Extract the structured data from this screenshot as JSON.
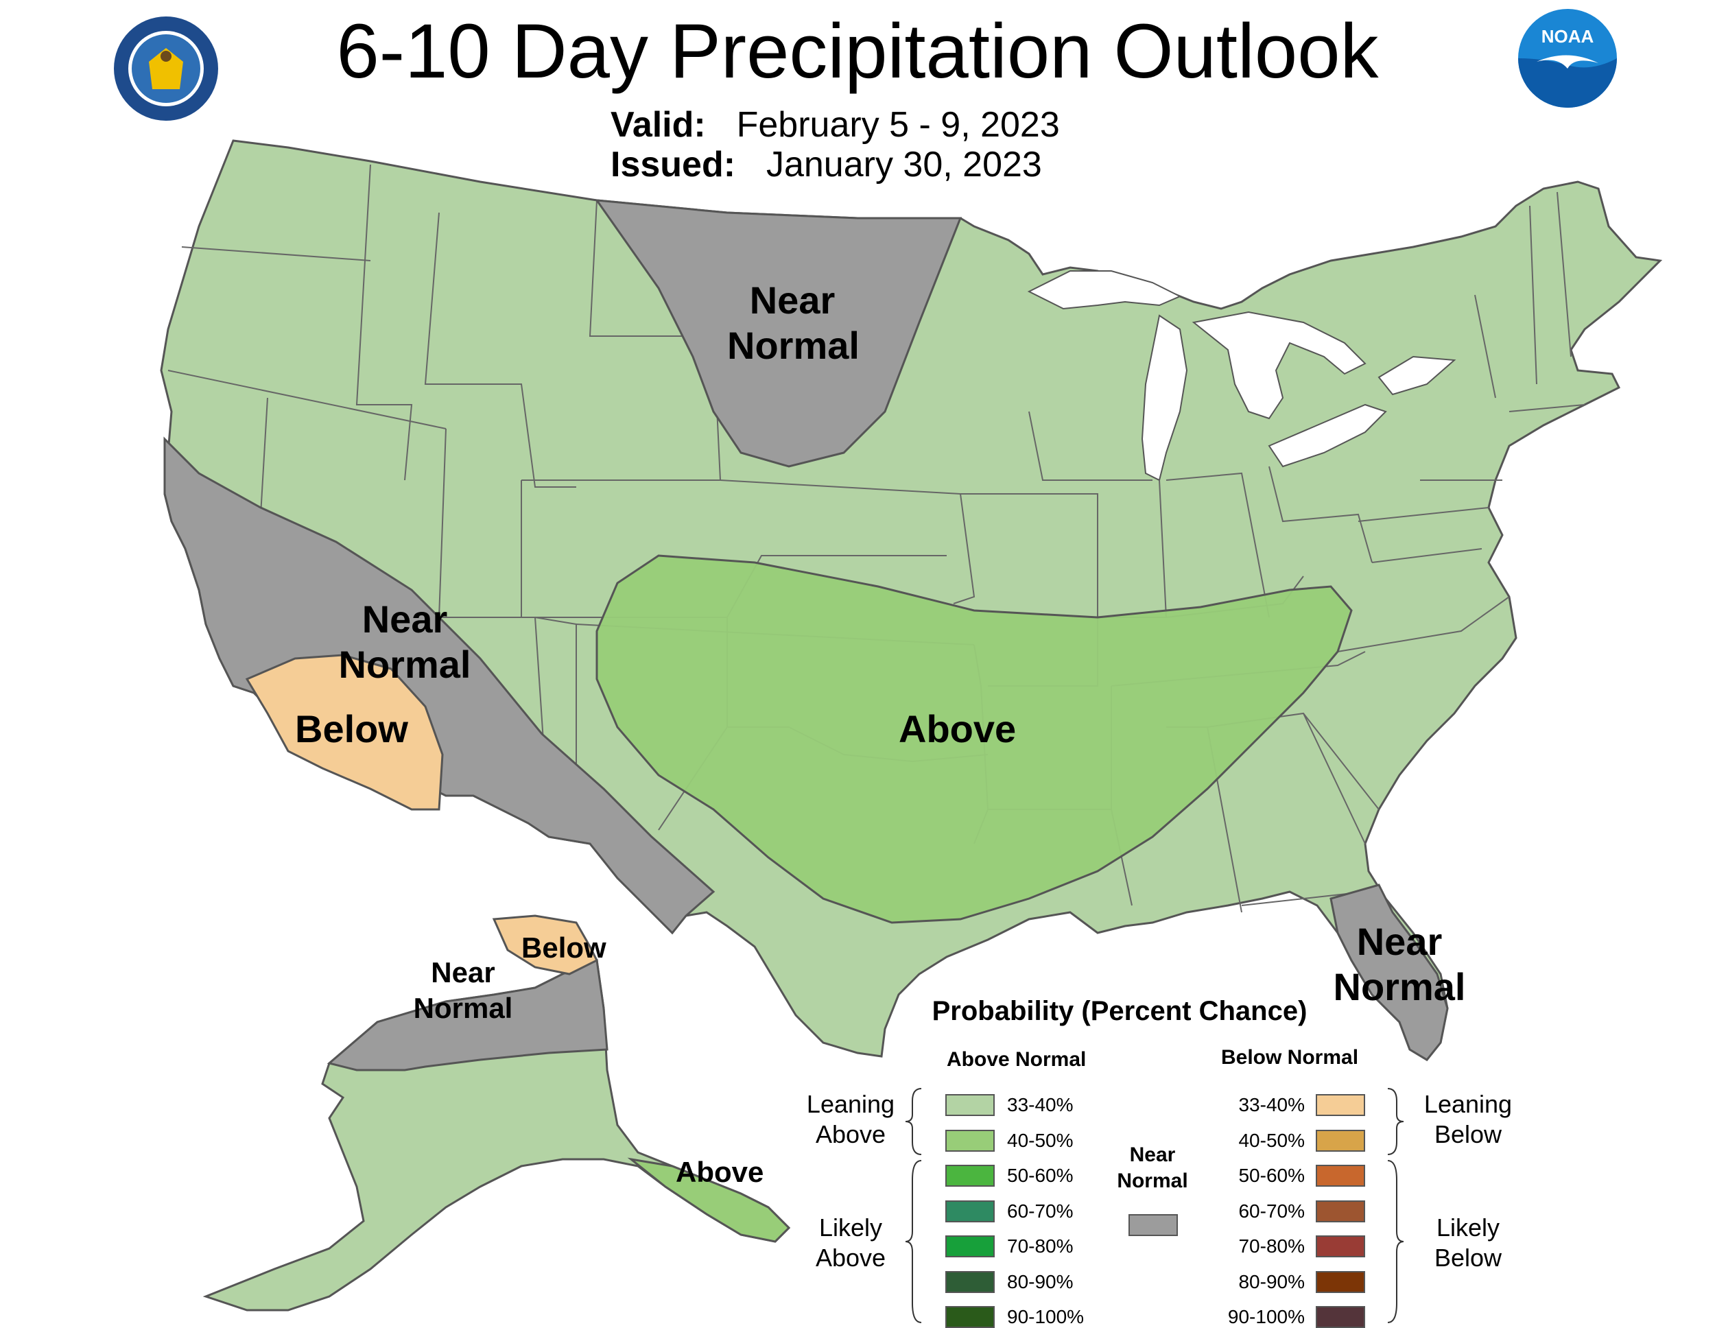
{
  "header": {
    "title": "6-10 Day Precipitation Outlook",
    "valid_label": "Valid:",
    "valid_value": "February 5 - 9, 2023",
    "issued_label": "Issued:",
    "issued_value": "January 30, 2023",
    "noaa_text": "NOAA"
  },
  "map_labels": {
    "plains_near_normal_1": "Near",
    "plains_near_normal_2": "Normal",
    "west_near_normal_1": "Near",
    "west_near_normal_2": "Normal",
    "west_below": "Below",
    "central_above": "Above",
    "florida_near_normal_1": "Near",
    "florida_near_normal_2": "Normal",
    "alaska_near_normal_1": "Near",
    "alaska_near_normal_2": "Normal",
    "alaska_below": "Below",
    "alaska_above": "Above"
  },
  "legend": {
    "title": "Probability (Percent Chance)",
    "above_header": "Above Normal",
    "below_header": "Below Normal",
    "leaning_above_1": "Leaning",
    "leaning_above_2": "Above",
    "likely_above_1": "Likely",
    "likely_above_2": "Above",
    "leaning_below_1": "Leaning",
    "leaning_below_2": "Below",
    "likely_below_1": "Likely",
    "likely_below_2": "Below",
    "near_normal_1": "Near",
    "near_normal_2": "Normal",
    "above_bins": [
      {
        "label": "33-40%",
        "color": "#b3d3a4"
      },
      {
        "label": "40-50%",
        "color": "#98cd78"
      },
      {
        "label": "50-60%",
        "color": "#4bb53f"
      },
      {
        "label": "60-70%",
        "color": "#2e8a62"
      },
      {
        "label": "70-80%",
        "color": "#17a03a"
      },
      {
        "label": "80-90%",
        "color": "#2e5d36"
      },
      {
        "label": "90-100%",
        "color": "#2a5a1a"
      }
    ],
    "below_bins": [
      {
        "label": "33-40%",
        "color": "#f5cd96"
      },
      {
        "label": "40-50%",
        "color": "#d8a449"
      },
      {
        "label": "50-60%",
        "color": "#c8672d"
      },
      {
        "label": "60-70%",
        "color": "#9d5530"
      },
      {
        "label": "70-80%",
        "color": "#993c35"
      },
      {
        "label": "80-90%",
        "color": "#7c3506"
      },
      {
        "label": "90-100%",
        "color": "#54343a"
      }
    ],
    "near_normal_color": "#9c9c9c"
  },
  "colors": {
    "leaning_above_fill": "#b3d3a4",
    "above_40_50_fill": "#98cd78",
    "near_normal_fill": "#9c9c9c",
    "leaning_below_fill": "#f5cd96",
    "boundary": "#555555"
  }
}
